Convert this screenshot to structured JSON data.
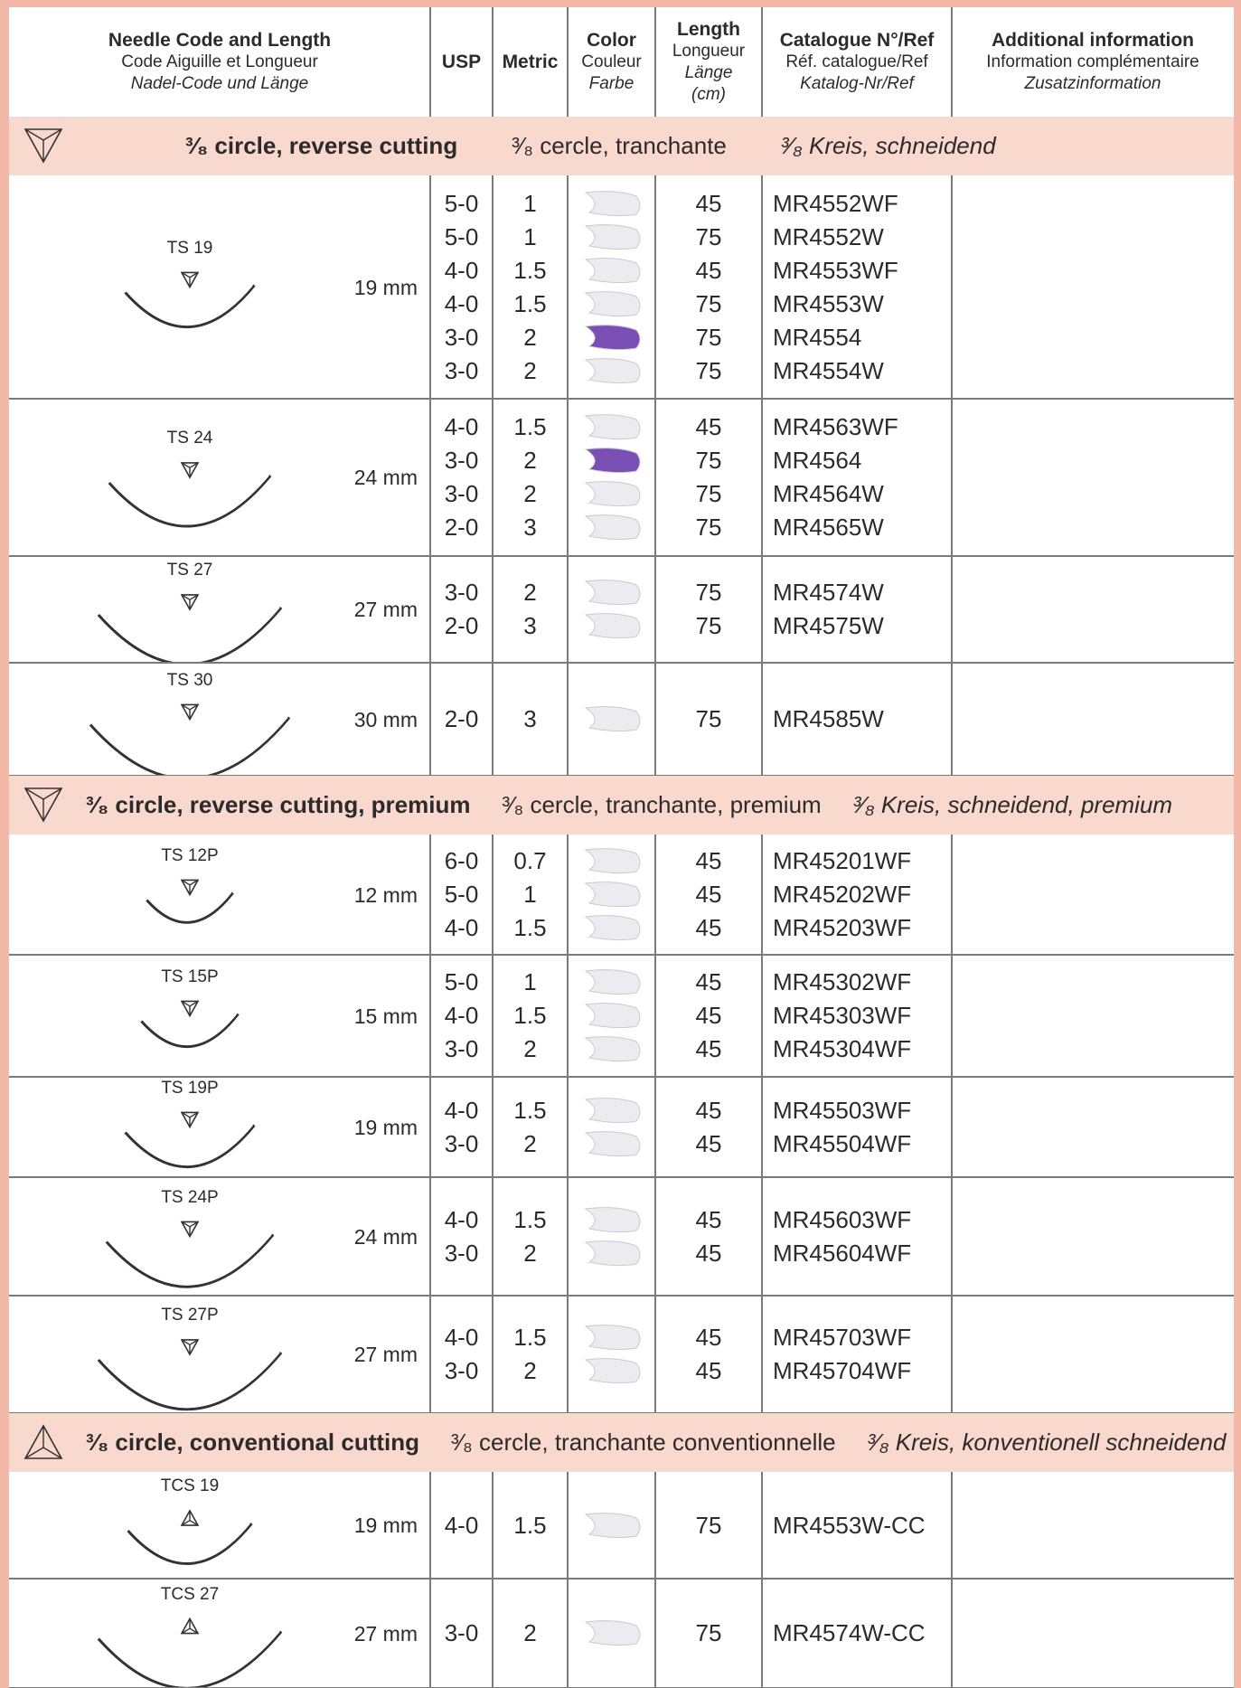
{
  "header": {
    "columns": [
      {
        "lines": [
          "Needle Code and Length",
          "Code Aiguille et Longueur",
          "Nadel-Code und Länge"
        ]
      },
      {
        "lines": [
          "USP"
        ]
      },
      {
        "lines": [
          "Metric"
        ]
      },
      {
        "lines": [
          "Color",
          "Couleur",
          "Farbe"
        ]
      },
      {
        "lines": [
          "Length",
          "Longueur",
          "Länge",
          "(cm)"
        ]
      },
      {
        "lines": [
          "Catalogue N°/Ref",
          "Réf. catalogue/Ref",
          "Katalog-Nr/Ref"
        ]
      },
      {
        "lines": [
          "Additional information",
          "Information complémentaire",
          "Zusatzinformation"
        ]
      }
    ]
  },
  "sections": [
    {
      "title": {
        "en": "³⁄₈ circle, reverse cutting",
        "fr": "³⁄₈ cercle, tranchante",
        "de": "³⁄₈ Kreis, schneidend"
      },
      "groups": [
        {
          "code": "TS 19",
          "length": "19 mm",
          "rows": [
            {
              "usp": "5-0",
              "metric": "1",
              "thread": "#ececf0",
              "length": "45",
              "ref": "MR4552WF"
            },
            {
              "usp": "5-0",
              "metric": "1",
              "thread": "#ececf0",
              "length": "75",
              "ref": "MR4552W"
            },
            {
              "usp": "4-0",
              "metric": "1.5",
              "thread": "#ececf0",
              "length": "45",
              "ref": "MR4553WF"
            },
            {
              "usp": "4-0",
              "metric": "1.5",
              "thread": "#ececf0",
              "length": "75",
              "ref": "MR4553W"
            },
            {
              "usp": "3-0",
              "metric": "2",
              "thread": "#7a4fb5",
              "length": "75",
              "ref": "MR4554"
            },
            {
              "usp": "3-0",
              "metric": "2",
              "thread": "#ececf0",
              "length": "75",
              "ref": "MR4554W"
            }
          ]
        },
        {
          "code": "TS 24",
          "length": "24 mm",
          "rows": [
            {
              "usp": "4-0",
              "metric": "1.5",
              "thread": "#ececf0",
              "length": "45",
              "ref": "MR4563WF"
            },
            {
              "usp": "3-0",
              "metric": "2",
              "thread": "#7a4fb5",
              "length": "75",
              "ref": "MR4564"
            },
            {
              "usp": "3-0",
              "metric": "2",
              "thread": "#ececf0",
              "length": "75",
              "ref": "MR4564W"
            },
            {
              "usp": "2-0",
              "metric": "3",
              "thread": "#ececf0",
              "length": "75",
              "ref": "MR4565W"
            }
          ]
        },
        {
          "code": "TS 27",
          "length": "27 mm",
          "rows": [
            {
              "usp": "3-0",
              "metric": "2",
              "thread": "#ececf0",
              "length": "75",
              "ref": "MR4574W"
            },
            {
              "usp": "2-0",
              "metric": "3",
              "thread": "#ececf0",
              "length": "75",
              "ref": "MR4575W"
            }
          ]
        },
        {
          "code": "TS 30",
          "length": "30 mm",
          "rows": [
            {
              "usp": "2-0",
              "metric": "3",
              "thread": "#ececf0",
              "length": "75",
              "ref": "MR4585W"
            }
          ]
        }
      ]
    },
    {
      "title": {
        "en": "³⁄₈ circle, reverse cutting, premium",
        "fr": "³⁄₈ cercle, tranchante, premium",
        "de": "³⁄₈ Kreis, schneidend, premium"
      },
      "groups": [
        {
          "code": "TS 12P",
          "length": "12 mm",
          "rows": [
            {
              "usp": "6-0",
              "metric": "0.7",
              "thread": "#ececf0",
              "length": "45",
              "ref": "MR45201WF"
            },
            {
              "usp": "5-0",
              "metric": "1",
              "thread": "#ececf0",
              "length": "45",
              "ref": "MR45202WF"
            },
            {
              "usp": "4-0",
              "metric": "1.5",
              "thread": "#ececf0",
              "length": "45",
              "ref": "MR45203WF"
            }
          ]
        },
        {
          "code": "TS 15P",
          "length": "15 mm",
          "rows": [
            {
              "usp": "5-0",
              "metric": "1",
              "thread": "#ececf0",
              "length": "45",
              "ref": "MR45302WF"
            },
            {
              "usp": "4-0",
              "metric": "1.5",
              "thread": "#ececf0",
              "length": "45",
              "ref": "MR45303WF"
            },
            {
              "usp": "3-0",
              "metric": "2",
              "thread": "#ececf0",
              "length": "45",
              "ref": "MR45304WF"
            }
          ]
        },
        {
          "code": "TS 19P",
          "length": "19 mm",
          "rows": [
            {
              "usp": "4-0",
              "metric": "1.5",
              "thread": "#ececf0",
              "length": "45",
              "ref": "MR45503WF"
            },
            {
              "usp": "3-0",
              "metric": "2",
              "thread": "#ececf0",
              "length": "45",
              "ref": "MR45504WF"
            }
          ]
        },
        {
          "code": "TS 24P",
          "length": "24 mm",
          "rows": [
            {
              "usp": "4-0",
              "metric": "1.5",
              "thread": "#ececf0",
              "length": "45",
              "ref": "MR45603WF"
            },
            {
              "usp": "3-0",
              "metric": "2",
              "thread": "#ececf0",
              "length": "45",
              "ref": "MR45604WF"
            }
          ]
        },
        {
          "code": "TS 27P",
          "length": "27 mm",
          "rows": [
            {
              "usp": "4-0",
              "metric": "1.5",
              "thread": "#ececf0",
              "length": "45",
              "ref": "MR45703WF"
            },
            {
              "usp": "3-0",
              "metric": "2",
              "thread": "#ececf0",
              "length": "45",
              "ref": "MR45704WF"
            }
          ]
        }
      ]
    },
    {
      "title": {
        "en": "³⁄₈ circle, conventional cutting",
        "fr": "³⁄₈ cercle, tranchante conventionnelle",
        "de": "³⁄₈ Kreis, konventionell schneidend"
      },
      "groups": [
        {
          "code": "TCS 19",
          "length": "19 mm",
          "rows": [
            {
              "usp": "4-0",
              "metric": "1.5",
              "thread": "#ececf0",
              "length": "75",
              "ref": "MR4553W-CC"
            }
          ]
        },
        {
          "code": "TCS 27",
          "length": "27 mm",
          "rows": [
            {
              "usp": "3-0",
              "metric": "2",
              "thread": "#ececf0",
              "length": "75",
              "ref": "MR4574W-CC"
            }
          ]
        }
      ]
    }
  ]
}
